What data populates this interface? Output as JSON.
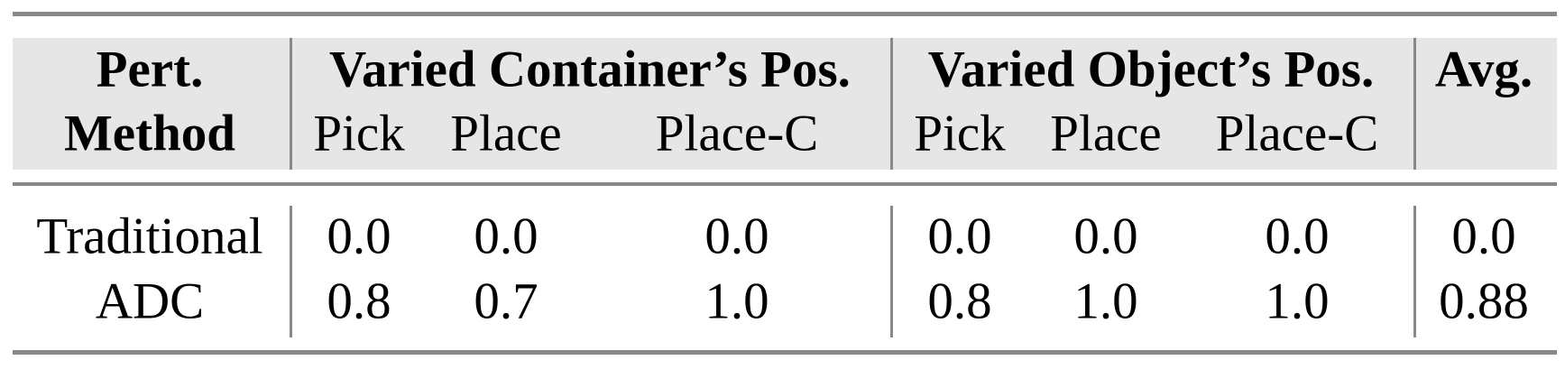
{
  "table": {
    "header": {
      "method_line1": "Pert.",
      "method_line2": "Method",
      "group1": "Varied Container’s Pos.",
      "group2": "Varied Object’s Pos.",
      "avg": "Avg.",
      "subcolumns": [
        "Pick",
        "Place",
        "Place-C",
        "Pick",
        "Place",
        "Place-C"
      ]
    },
    "rows": [
      {
        "method": "Traditional",
        "values": [
          "0.0",
          "0.0",
          "0.0",
          "0.0",
          "0.0",
          "0.0"
        ],
        "avg": "0.0"
      },
      {
        "method": "ADC",
        "values": [
          "0.8",
          "0.7",
          "1.0",
          "0.8",
          "1.0",
          "1.0"
        ],
        "avg": "0.88"
      }
    ],
    "colors": {
      "rule": "#888888",
      "header_bg": "#e6e6e6"
    }
  }
}
